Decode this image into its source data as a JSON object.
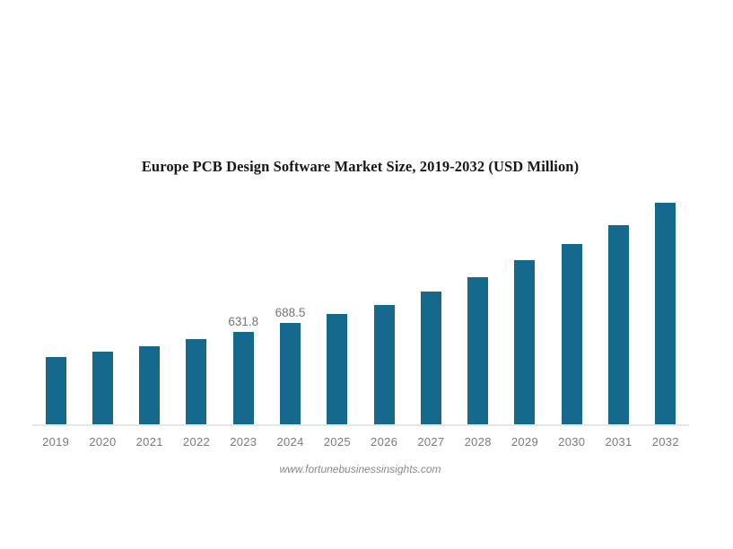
{
  "page": {
    "background": "#ffffff"
  },
  "chart": {
    "title": "Europe PCB Design Software Market Size, 2019-2032 (USD Million)",
    "source": "www.fortunebusinessinsights.com"
  },
  "chart_data": {
    "type": "bar",
    "title": "Europe PCB Design Software Market Size, 2019-2032 (USD Million)",
    "categories": [
      "2019",
      "2020",
      "2021",
      "2022",
      "2023",
      "2024",
      "2025",
      "2026",
      "2027",
      "2028",
      "2029",
      "2030",
      "2031",
      "2032"
    ],
    "values": [
      458,
      495,
      531,
      580,
      631.8,
      688.5,
      752,
      814,
      903,
      1005,
      1117,
      1227,
      1359,
      1511
    ],
    "data_labels": [
      {
        "category": "2023",
        "text": "631.8"
      },
      {
        "category": "2024",
        "text": "688.5"
      }
    ],
    "xlabel": "",
    "ylabel": "",
    "ylim": [
      0,
      1560
    ],
    "grid": false,
    "legend": false,
    "y_axis_visible": false,
    "bar_color": "#14698c",
    "axis_line_color": "#e7e7e7",
    "tick_label_color": "#7b7b7b",
    "data_label_color": "#757575",
    "source": "www.fortunebusinessinsights.com"
  }
}
